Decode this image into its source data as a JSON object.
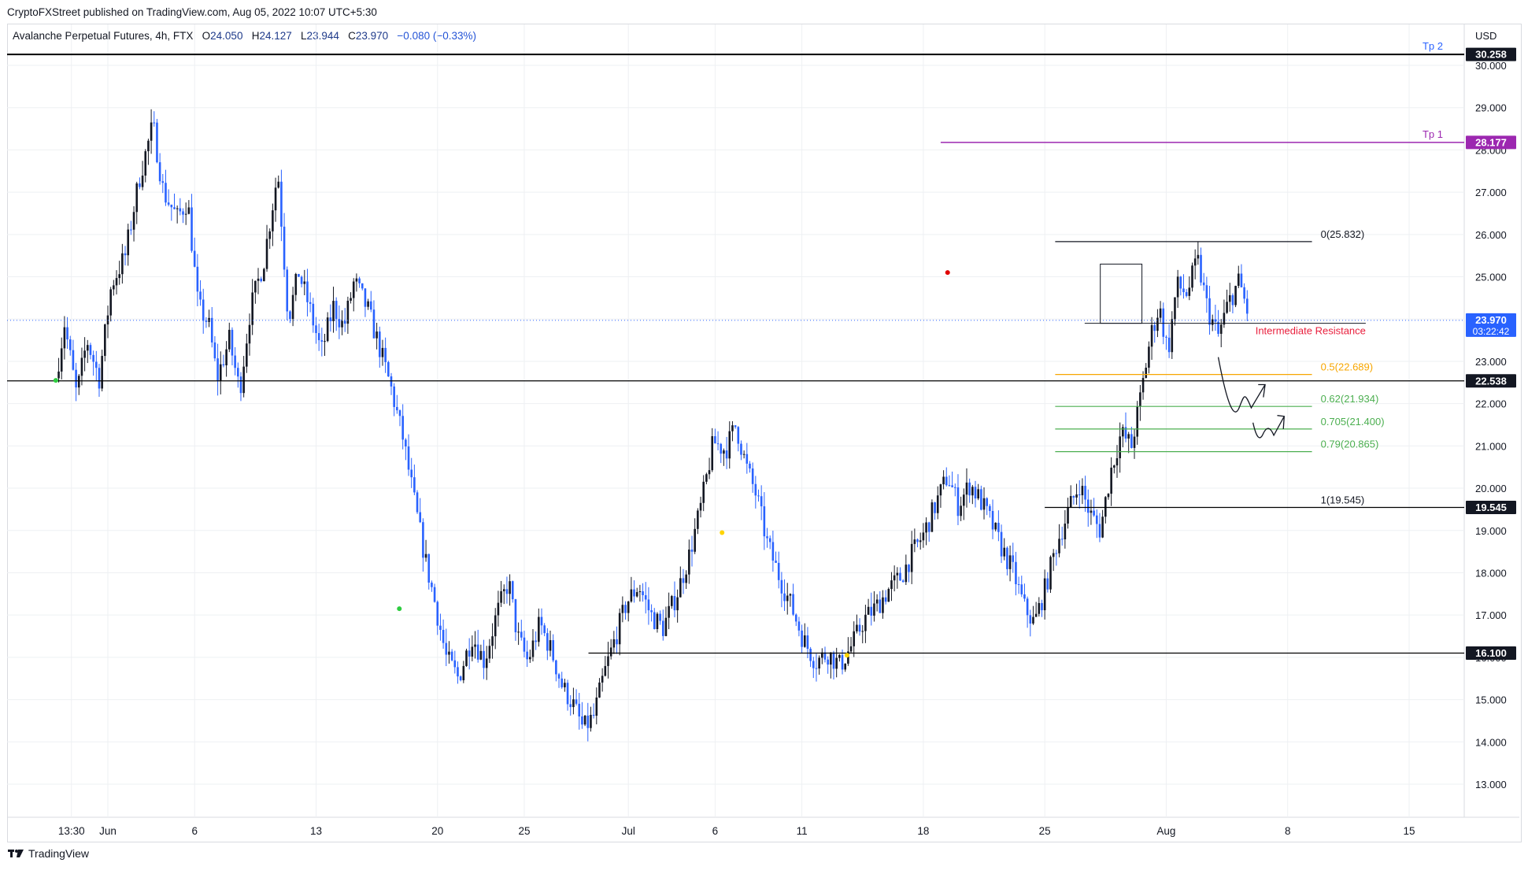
{
  "header": {
    "published": "CryptoFXStreet published on TradingView.com, Aug 05, 2022 10:07 UTC+5:30"
  },
  "legend": {
    "symbol": "Avalanche Perpetual Futures, 4h, FTX",
    "o_label": "O",
    "o": "24.050",
    "h_label": "H",
    "h": "24.127",
    "l_label": "L",
    "l": "23.944",
    "c_label": "C",
    "c": "23.970",
    "change": "−0.080 (−0.33%)"
  },
  "footer": {
    "brand": "TradingView",
    "logo_icon": "tradingview-logo-icon"
  },
  "colors": {
    "up": "#131722",
    "down": "#2962ff",
    "grid": "#eef0f3",
    "target": "#9c27b0",
    "fib_half": "#f7a600",
    "fib_green": "#4caf50",
    "annotation": "#e91e3c",
    "price_tag": "#2962ff"
  },
  "chart_data": {
    "type": "candlestick",
    "symbol": "Avalanche Perpetual Futures",
    "timeframe": "4h",
    "exchange": "FTX",
    "currency": "USD",
    "ylim": [
      12.2,
      30.7
    ],
    "y_ticks": [
      "13.000",
      "14.000",
      "15.000",
      "16.000",
      "17.000",
      "18.000",
      "19.000",
      "20.000",
      "21.000",
      "22.000",
      "23.000",
      "24.000",
      "25.000",
      "26.000",
      "27.000",
      "28.000",
      "29.000",
      "30.000"
    ],
    "x_ticks": [
      "13:30",
      "Jun",
      "6",
      "13",
      "20",
      "25",
      "Jul",
      "6",
      "11",
      "18",
      "25",
      "Aug",
      "8",
      "15"
    ],
    "x_tick_days": [
      -2.1,
      0,
      5,
      12,
      19,
      24,
      30,
      35,
      40,
      47,
      54,
      61,
      68,
      75
    ],
    "last_day": 65.8,
    "swing_path": [
      [
        -3.0,
        22.6
      ],
      [
        -2.5,
        23.9
      ],
      [
        -1.8,
        22.2
      ],
      [
        -1.2,
        23.5
      ],
      [
        -0.5,
        22.6
      ],
      [
        0.2,
        24.8
      ],
      [
        1.0,
        25.5
      ],
      [
        1.8,
        27.3
      ],
      [
        2.6,
        28.6
      ],
      [
        3.2,
        27.0
      ],
      [
        4.0,
        26.4
      ],
      [
        4.6,
        26.8
      ],
      [
        5.2,
        24.3
      ],
      [
        5.8,
        23.9
      ],
      [
        6.3,
        22.6
      ],
      [
        7.0,
        23.5
      ],
      [
        7.6,
        22.3
      ],
      [
        8.2,
        24.2
      ],
      [
        9.0,
        25.4
      ],
      [
        9.8,
        27.5
      ],
      [
        10.4,
        24.0
      ],
      [
        11.0,
        25.1
      ],
      [
        11.6,
        24.3
      ],
      [
        12.3,
        23.2
      ],
      [
        13.0,
        24.3
      ],
      [
        13.6,
        23.8
      ],
      [
        14.2,
        24.9
      ],
      [
        15.0,
        24.2
      ],
      [
        15.6,
        23.4
      ],
      [
        16.3,
        22.4
      ],
      [
        17.0,
        21.2
      ],
      [
        17.7,
        19.6
      ],
      [
        18.3,
        18.3
      ],
      [
        18.9,
        17.2
      ],
      [
        19.5,
        16.0
      ],
      [
        20.2,
        15.5
      ],
      [
        21.0,
        16.5
      ],
      [
        21.7,
        15.9
      ],
      [
        22.4,
        17.0
      ],
      [
        23.1,
        17.8
      ],
      [
        23.6,
        16.5
      ],
      [
        24.2,
        15.9
      ],
      [
        24.9,
        16.8
      ],
      [
        25.6,
        16.1
      ],
      [
        26.2,
        15.3
      ],
      [
        26.8,
        14.9
      ],
      [
        27.4,
        14.3
      ],
      [
        28.0,
        14.6
      ],
      [
        28.6,
        15.6
      ],
      [
        29.2,
        16.4
      ],
      [
        29.9,
        17.3
      ],
      [
        30.6,
        17.7
      ],
      [
        31.3,
        17.0
      ],
      [
        32.0,
        16.7
      ],
      [
        32.8,
        17.5
      ],
      [
        33.5,
        18.4
      ],
      [
        34.2,
        19.6
      ],
      [
        34.9,
        21.1
      ],
      [
        35.6,
        20.9
      ],
      [
        36.2,
        21.5
      ],
      [
        36.8,
        20.5
      ],
      [
        37.4,
        19.8
      ],
      [
        38.0,
        18.7
      ],
      [
        38.7,
        17.9
      ],
      [
        39.4,
        17.2
      ],
      [
        40.1,
        16.4
      ],
      [
        40.8,
        15.9
      ],
      [
        41.5,
        16.1
      ],
      [
        42.2,
        15.8
      ],
      [
        42.9,
        16.3
      ],
      [
        43.6,
        16.9
      ],
      [
        44.3,
        17.2
      ],
      [
        45.0,
        17.6
      ],
      [
        45.7,
        17.9
      ],
      [
        46.3,
        18.4
      ],
      [
        47.0,
        18.9
      ],
      [
        47.7,
        19.6
      ],
      [
        48.4,
        20.3
      ],
      [
        49.0,
        19.6
      ],
      [
        49.7,
        20.1
      ],
      [
        50.3,
        19.7
      ],
      [
        50.9,
        19.2
      ],
      [
        51.5,
        18.6
      ],
      [
        52.2,
        18.0
      ],
      [
        52.8,
        17.2
      ],
      [
        53.4,
        16.8
      ],
      [
        54.0,
        17.6
      ],
      [
        54.7,
        18.7
      ],
      [
        55.4,
        19.5
      ],
      [
        56.0,
        20.1
      ],
      [
        56.6,
        19.4
      ],
      [
        57.2,
        19.0
      ],
      [
        57.8,
        20.4
      ],
      [
        58.4,
        21.3
      ],
      [
        59.0,
        21.0
      ],
      [
        59.5,
        22.1
      ],
      [
        60.1,
        23.6
      ],
      [
        60.6,
        24.3
      ],
      [
        61.1,
        23.2
      ],
      [
        61.6,
        24.8
      ],
      [
        62.2,
        24.6
      ],
      [
        62.8,
        25.4
      ],
      [
        63.4,
        24.2
      ],
      [
        64.0,
        23.6
      ],
      [
        64.6,
        24.4
      ],
      [
        65.2,
        24.9
      ],
      [
        65.8,
        24.0
      ]
    ],
    "levels": [
      {
        "price": 30.258,
        "label": "Tp 2",
        "style": "black"
      },
      {
        "price": 28.177,
        "label": "Tp 1",
        "style": "target"
      },
      {
        "price": 22.538,
        "label": "",
        "style": "black"
      },
      {
        "price": 16.1,
        "label": "",
        "style": "black"
      },
      {
        "price": 19.545,
        "label": "",
        "style": "black"
      }
    ],
    "price_tags": [
      {
        "price": 30.258,
        "text": "30.258",
        "style": "black"
      },
      {
        "price": 28.177,
        "text": "28.177",
        "style": "target"
      },
      {
        "price": 23.97,
        "text": "23.970",
        "sub": "03:22:42",
        "style": "blue"
      },
      {
        "price": 22.538,
        "text": "22.538",
        "style": "black"
      },
      {
        "price": 19.545,
        "text": "19.545",
        "style": "black"
      },
      {
        "price": 16.1,
        "text": "16.100",
        "style": "black"
      }
    ],
    "fib": [
      {
        "level": "0",
        "price": 25.832,
        "text": "0(25.832)",
        "style": "black"
      },
      {
        "level": "0.5",
        "price": 22.689,
        "text": "0.5(22.689)",
        "style": "half"
      },
      {
        "level": "0.62",
        "price": 21.934,
        "text": "0.62(21.934)",
        "style": "green"
      },
      {
        "level": "0.705",
        "price": 21.4,
        "text": "0.705(21.400)",
        "style": "green"
      },
      {
        "level": "0.79",
        "price": 20.865,
        "text": "0.79(20.865)",
        "style": "green"
      },
      {
        "level": "1",
        "price": 19.545,
        "text": "1(19.545)",
        "style": "black"
      }
    ],
    "annotations": [
      {
        "text": "Intermediate Resistance",
        "price": 23.7
      },
      {
        "text": "USD"
      }
    ],
    "markers": [
      {
        "day": -3.0,
        "price": 22.55,
        "color": "#2ecc40"
      },
      {
        "day": 16.8,
        "price": 17.15,
        "color": "#2ecc40"
      },
      {
        "day": 35.4,
        "price": 18.95,
        "color": "#ffd400"
      },
      {
        "day": 42.6,
        "price": 16.05,
        "color": "#ffd400"
      },
      {
        "day": 48.4,
        "price": 25.1,
        "color": "#e00000"
      }
    ]
  }
}
